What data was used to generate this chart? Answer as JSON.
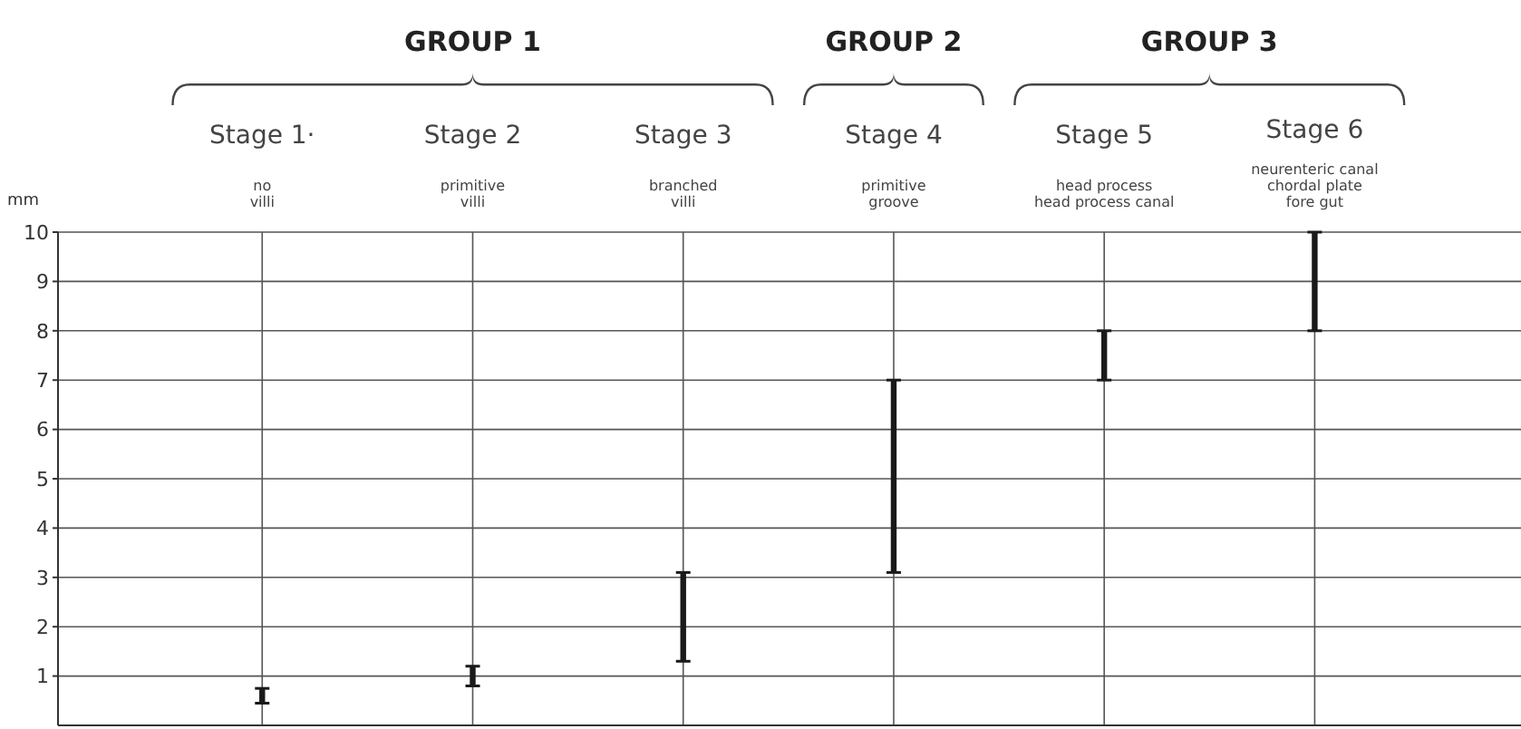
{
  "chart_data": {
    "type": "bar",
    "ylabel": "mm",
    "categories": [
      "Stage 1·\nno\nvilli",
      "Stage 2\nprimitive\nvilli",
      "Stage 3\nbranched\nvilli",
      "Stage 4\nprimitive\ngroove",
      "Stage 5\nhead process\nhead process canal",
      "Stage 6\nneurenteric canal\nchordal plate\nfore gut"
    ],
    "base": [
      0.45,
      0.8,
      1.3,
      3.1,
      7.0,
      8.0
    ],
    "values": [
      0.3,
      0.4,
      1.8,
      3.9,
      1.0,
      2.0
    ],
    "color": "#1a1a1a",
    "ylim": [
      0,
      10
    ],
    "yticks": [
      1,
      2,
      3,
      4,
      5,
      6,
      7,
      8,
      9,
      10
    ],
    "grid": true,
    "annotations": [
      "GROUP 1",
      "GROUP 2",
      "GROUP 3"
    ]
  }
}
